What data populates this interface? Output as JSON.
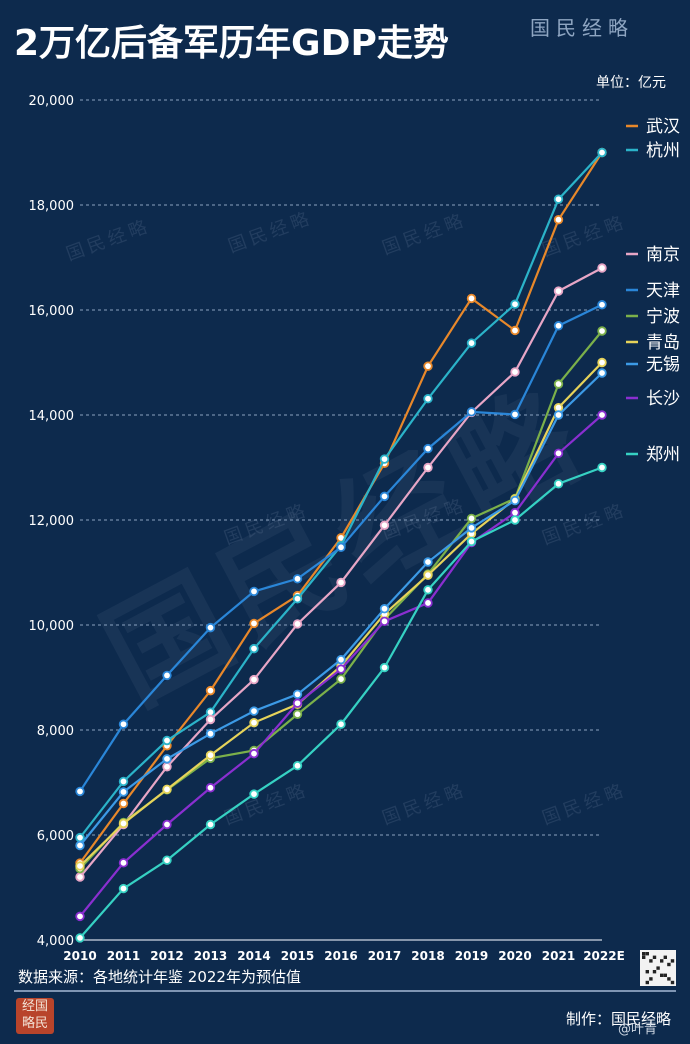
{
  "title": "2万亿后备军历年GDP走势",
  "brand": "国民经略",
  "unit_label": "单位：亿元",
  "source_note": "数据来源：各地统计年鉴  2022年为预估值",
  "credit": "制作：国民经略",
  "handle": "@叶青",
  "seal_text": "国民经略",
  "chart_data": {
    "type": "line",
    "title": "2万亿后备军历年GDP走势",
    "ylabel": "单位：亿元",
    "ylim": [
      4000,
      20000
    ],
    "yticks": [
      "4,000",
      "6,000",
      "8,000",
      "10,000",
      "12,000",
      "14,000",
      "16,000",
      "18,000",
      "20,000"
    ],
    "yticks_values": [
      4000,
      6000,
      8000,
      10000,
      12000,
      14000,
      16000,
      18000,
      20000
    ],
    "x": [
      "2010",
      "2011",
      "2012",
      "2013",
      "2014",
      "2015",
      "2016",
      "2017",
      "2018",
      "2019",
      "2020",
      "2021",
      "2022E"
    ],
    "grid": "horizontal-dashed",
    "legend": "right",
    "series": [
      {
        "name": "武汉",
        "color": "#e8882a",
        "values": [
          5466,
          6600,
          7700,
          8750,
          10030,
          10560,
          11660,
          13080,
          14930,
          16220,
          15610,
          17720,
          19000
        ]
      },
      {
        "name": "杭州",
        "color": "#2bb3c9",
        "values": [
          5950,
          7020,
          7800,
          8340,
          9550,
          10500,
          11510,
          13160,
          14310,
          15370,
          16110,
          18110,
          19000
        ]
      },
      {
        "name": "南京",
        "color": "#e7a6c6",
        "values": [
          5200,
          6200,
          7300,
          8200,
          8960,
          10020,
          10810,
          11900,
          13000,
          14050,
          14820,
          16360,
          16800
        ]
      },
      {
        "name": "天津",
        "color": "#2a86d8",
        "values": [
          6830,
          8110,
          9040,
          9950,
          10640,
          10880,
          11480,
          12450,
          13360,
          14060,
          14010,
          15700,
          16100
        ]
      },
      {
        "name": "宁波",
        "color": "#7bb04a",
        "values": [
          5360,
          6240,
          6860,
          7460,
          7610,
          8300,
          8970,
          10110,
          10970,
          12030,
          12410,
          14590,
          15600
        ]
      },
      {
        "name": "青岛",
        "color": "#e6d35a",
        "values": [
          5410,
          6220,
          6870,
          7520,
          8140,
          8490,
          9220,
          10210,
          10950,
          11740,
          12400,
          14140,
          15000
        ]
      },
      {
        "name": "无锡",
        "color": "#3c9ae6",
        "values": [
          5800,
          6820,
          7450,
          7930,
          8360,
          8680,
          9340,
          10310,
          11200,
          11850,
          12370,
          14000,
          14800
        ]
      },
      {
        "name": "长沙",
        "color": "#8a2fd0",
        "values": [
          4450,
          5470,
          6200,
          6900,
          7550,
          8510,
          9160,
          10070,
          10420,
          11570,
          12140,
          13270,
          14000
        ]
      },
      {
        "name": "郑州",
        "color": "#36d1c3",
        "values": [
          4040,
          4980,
          5520,
          6200,
          6780,
          7320,
          8110,
          9190,
          10670,
          11590,
          12000,
          12690,
          13000
        ]
      }
    ]
  }
}
